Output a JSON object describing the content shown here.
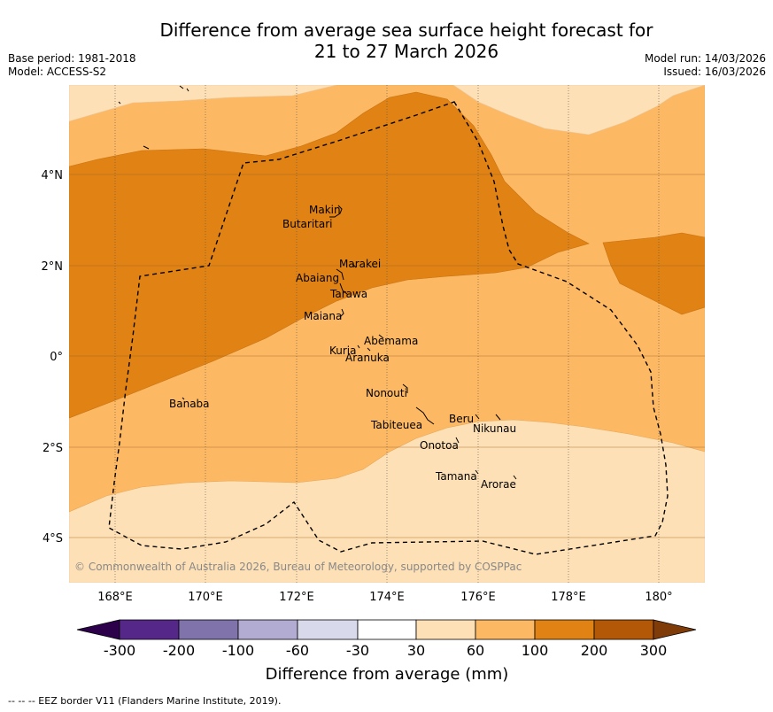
{
  "title_line1": "Difference from average sea surface height forecast for",
  "title_line2": "21 to 27 March 2026",
  "base_period": "Base period: 1981-2018",
  "model": "Model: ACCESS-S2",
  "model_run": "Model run: 14/03/2026",
  "issued": "Issued: 16/03/2026",
  "copyright": "© Commonwealth of Australia 2026, Bureau of Meteorology, supported by COSPPac",
  "footnote": "-- -- -- EEZ border V11 (Flanders Marine Institute, 2019).",
  "lon_ticks": [
    "168°E",
    "170°E",
    "172°E",
    "174°E",
    "176°E",
    "178°E",
    "180°"
  ],
  "lat_ticks": [
    "4°N",
    "2°N",
    "0°",
    "2°S",
    "4°S"
  ],
  "places": [
    {
      "name": "Makin"
    },
    {
      "name": "Butaritari"
    },
    {
      "name": "Marakei"
    },
    {
      "name": "Abaiang"
    },
    {
      "name": "Tarawa"
    },
    {
      "name": "Maiana"
    },
    {
      "name": "Abemama"
    },
    {
      "name": "Kuria"
    },
    {
      "name": "Aranuka"
    },
    {
      "name": "Nonouti"
    },
    {
      "name": "Banaba"
    },
    {
      "name": "Beru"
    },
    {
      "name": "Tabiteuea"
    },
    {
      "name": "Nikunau"
    },
    {
      "name": "Onotoa"
    },
    {
      "name": "Tamana"
    },
    {
      "name": "Arorae"
    }
  ],
  "colorbar": {
    "label": "Difference from average (mm)",
    "ticks": [
      "-300",
      "-200",
      "-100",
      "-60",
      "-30",
      "30",
      "60",
      "100",
      "200",
      "300"
    ],
    "colors": {
      "below": "#2d004b",
      "c1": "#542788",
      "c2": "#8073ac",
      "c3": "#b2abd2",
      "c4": "#d8daeb",
      "c5": "#ffffff",
      "c6": "#fee0b6",
      "c7": "#fdb863",
      "c8": "#e08214",
      "c9": "#b35806",
      "above": "#7f3b08"
    }
  }
}
